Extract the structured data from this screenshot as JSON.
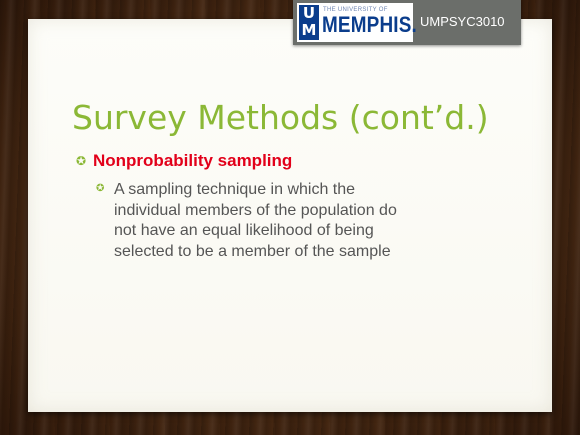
{
  "header": {
    "logo": {
      "um": [
        "U",
        "M"
      ],
      "small_text": "THE UNIVERSITY OF",
      "big_text": "MEMPHIS."
    },
    "course_code": "UMPSYC3010"
  },
  "slide": {
    "title": "Survey Methods (cont’d.)",
    "bullets": [
      {
        "icon": "bullet-icon",
        "text": "Nonprobability sampling",
        "color": "#e2001a",
        "sub_bullets": [
          {
            "icon": "bullet-icon",
            "lines": [
              "A sampling technique in which the",
              "individual members of the population do",
              "not have an equal likelihood of being",
              "selected to be a member of the sample"
            ]
          }
        ]
      }
    ]
  },
  "colors": {
    "accent": "#8bb836",
    "heading_red": "#e2001a",
    "memphis_blue": "#0b3d8c",
    "banner_gray": "#6b6e6a"
  }
}
